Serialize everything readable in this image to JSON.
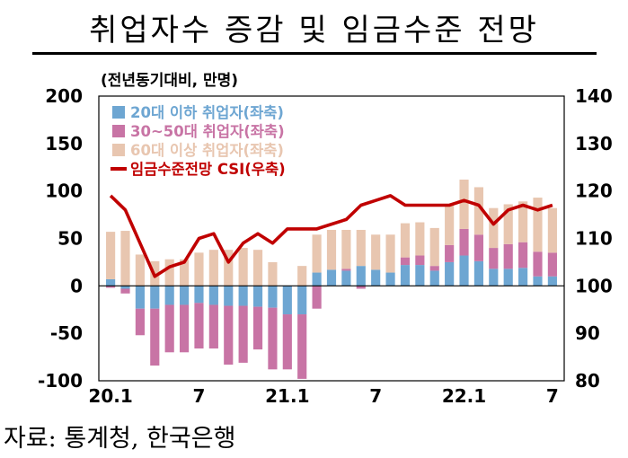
{
  "title": "취업자수 증감 및 임금수준 전망",
  "source": "자료: 통계청, 한국은행",
  "chart_data": {
    "type": "bar",
    "unit_label": "(전년동기대비, 만명)",
    "x_tick_labels": [
      "20.1",
      "7",
      "21.1",
      "7",
      "22.1",
      "7"
    ],
    "x_tick_indices": [
      0,
      6,
      12,
      18,
      24,
      30
    ],
    "months": [
      "20.1",
      "20.2",
      "20.3",
      "20.4",
      "20.5",
      "20.6",
      "20.7",
      "20.8",
      "20.9",
      "20.10",
      "20.11",
      "20.12",
      "21.1",
      "21.2",
      "21.3",
      "21.4",
      "21.5",
      "21.6",
      "21.7",
      "21.8",
      "21.9",
      "21.10",
      "21.11",
      "21.12",
      "22.1",
      "22.2",
      "22.3",
      "22.4",
      "22.5",
      "22.6",
      "22.7"
    ],
    "y_left": {
      "min": -100,
      "max": 200,
      "ticks": [
        "-100",
        "-50",
        "0",
        "50",
        "100",
        "150",
        "200"
      ]
    },
    "y_right": {
      "min": 80,
      "max": 140,
      "ticks": [
        "80",
        "90",
        "100",
        "110",
        "120",
        "130",
        "140"
      ]
    },
    "series": [
      {
        "name": "20대 이하 취업자(좌축)",
        "type": "stacked-bar",
        "axis": "left",
        "color": "#6EA6D2",
        "values": [
          7,
          -3,
          -24,
          -24,
          -20,
          -20,
          -18,
          -20,
          -21,
          -21,
          -22,
          -23,
          -30,
          -30,
          14,
          17,
          16,
          21,
          17,
          14,
          22,
          22,
          16,
          25,
          32,
          26,
          18,
          18,
          19,
          10,
          10
        ]
      },
      {
        "name": "30~50대 취업자(좌축)",
        "type": "stacked-bar",
        "axis": "left",
        "color": "#C874A5",
        "values": [
          -2,
          -5,
          -28,
          -60,
          -50,
          -50,
          -48,
          -46,
          -62,
          -60,
          -45,
          -65,
          -58,
          -68,
          -24,
          0,
          2,
          -3,
          0,
          0,
          8,
          10,
          5,
          18,
          28,
          28,
          22,
          26,
          27,
          26,
          25
        ]
      },
      {
        "name": "60대 이상 취업자(좌축)",
        "type": "stacked-bar",
        "axis": "left",
        "color": "#E8C6B0",
        "values": [
          50,
          58,
          33,
          26,
          28,
          28,
          35,
          38,
          38,
          40,
          38,
          25,
          0,
          21,
          40,
          42,
          41,
          38,
          37,
          40,
          36,
          35,
          40,
          42,
          52,
          50,
          42,
          42,
          43,
          57,
          47
        ]
      },
      {
        "name": "임금수준전망 CSI(우축)",
        "type": "line",
        "axis": "right",
        "color": "#C00000",
        "values": [
          119,
          116,
          109,
          102,
          104,
          105,
          110,
          111,
          105,
          109,
          111,
          109,
          112,
          112,
          112,
          113,
          114,
          117,
          118,
          119,
          117,
          117,
          117,
          117,
          118,
          117,
          113,
          116,
          117,
          116,
          117
        ]
      }
    ],
    "legend_position": "top-left inside plot",
    "grid": false
  }
}
